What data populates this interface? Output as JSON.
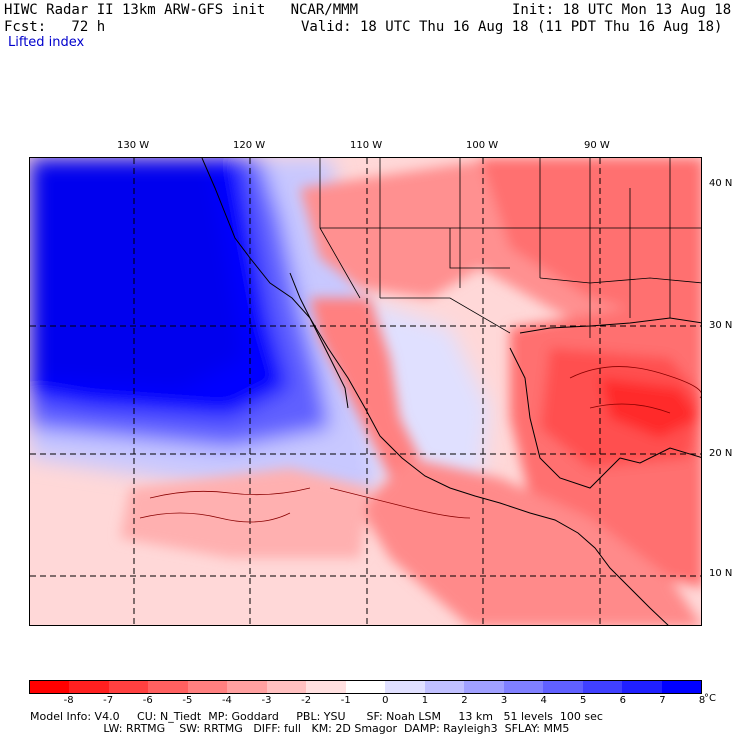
{
  "header": {
    "line1_left": "HIWC Radar II 13km ARW-GFS init   NCAR/MMM",
    "line1_right": "Init: 18 UTC Mon 13 Aug 18",
    "line2_left": "Fcst:   72 h",
    "line2_right": "Valid: 18 UTC Thu 16 Aug 18 (11 PDT Thu 16 Aug 18)",
    "field_name": "Lifted index"
  },
  "map": {
    "lon_labels": [
      "130 W",
      "120 W",
      "110 W",
      "100 W",
      "90 W"
    ],
    "lat_labels": [
      "40 N",
      "30 N",
      "20 N",
      "10 N"
    ]
  },
  "colorbar": {
    "colors": [
      "#ff0000",
      "#ff2020",
      "#ff4040",
      "#ff6060",
      "#ff8080",
      "#ffa0a0",
      "#ffc0c0",
      "#ffe0e0",
      "#ffffff",
      "#e0e0ff",
      "#c0c0ff",
      "#a0a0ff",
      "#8080ff",
      "#6060ff",
      "#4040ff",
      "#2020ff",
      "#0000ff"
    ],
    "tick_labels": [
      "-8",
      "-7",
      "-6",
      "-5",
      "-4",
      "-3",
      "-2",
      "-1",
      "0",
      "1",
      "2",
      "3",
      "4",
      "5",
      "6",
      "7",
      "8"
    ],
    "unit": "°C"
  },
  "footer": {
    "line1": "Model Info: V4.0     CU: N_Tiedt  MP: Goddard     PBL: YSU      SF: Noah LSM     13 km   51 levels  100 sec",
    "line2": "                     LW: RRTMG    SW: RRTMG   DIFF: full   KM: 2D Smagor  DAMP: Rayleigh3  SFLAY: MM5"
  }
}
